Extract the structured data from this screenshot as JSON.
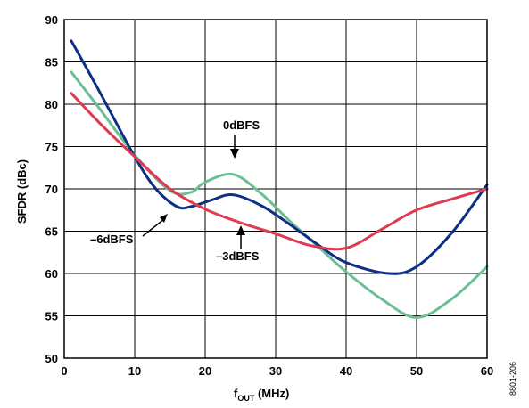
{
  "chart_data": {
    "type": "line",
    "xlabel": "f",
    "xlabel_sub": "OUT",
    "xlabel_unit": " (MHz)",
    "ylabel": "SFDR (dBc)",
    "xlim": [
      0,
      60
    ],
    "ylim": [
      50,
      90
    ],
    "xticks": [
      0,
      10,
      20,
      30,
      40,
      50,
      60
    ],
    "yticks": [
      50,
      55,
      60,
      65,
      70,
      75,
      80,
      85,
      90
    ],
    "grid": true,
    "figure_id": "8801-206",
    "series": [
      {
        "name": "0dBFS",
        "color": "#6cbf94",
        "x": [
          1,
          5,
          10,
          15,
          18,
          20,
          24,
          28,
          32,
          36,
          40,
          45,
          50,
          55,
          60
        ],
        "y": [
          83.8,
          79.5,
          74.0,
          69.8,
          69.6,
          70.8,
          71.7,
          69.4,
          66.2,
          63.2,
          60.2,
          57.0,
          54.8,
          57.0,
          60.8
        ]
      },
      {
        "name": "-3dBFS",
        "color": "#0d2f85",
        "x": [
          1,
          5,
          10,
          13,
          16,
          18,
          21,
          24,
          28,
          32,
          36,
          40,
          46,
          50,
          55,
          60
        ],
        "y": [
          87.5,
          81.5,
          73.8,
          70.0,
          67.9,
          67.9,
          68.7,
          69.3,
          68.0,
          65.8,
          63.4,
          61.3,
          60.0,
          60.8,
          64.8,
          70.5
        ]
      },
      {
        "name": "-6dBFS",
        "color": "#de3a52",
        "x": [
          1,
          5,
          10,
          15,
          20,
          25,
          30,
          35,
          40,
          45,
          50,
          55,
          60
        ],
        "y": [
          81.3,
          77.8,
          73.8,
          70.0,
          67.6,
          66.0,
          64.7,
          63.3,
          63.0,
          65.2,
          67.5,
          68.8,
          70.0
        ]
      }
    ],
    "annotations": [
      {
        "text": "0dBFS",
        "series": "0dBFS"
      },
      {
        "text": "–3dBFS",
        "series": "-3dBFS"
      },
      {
        "text": "–6dBFS",
        "series": "-6dBFS"
      }
    ]
  }
}
